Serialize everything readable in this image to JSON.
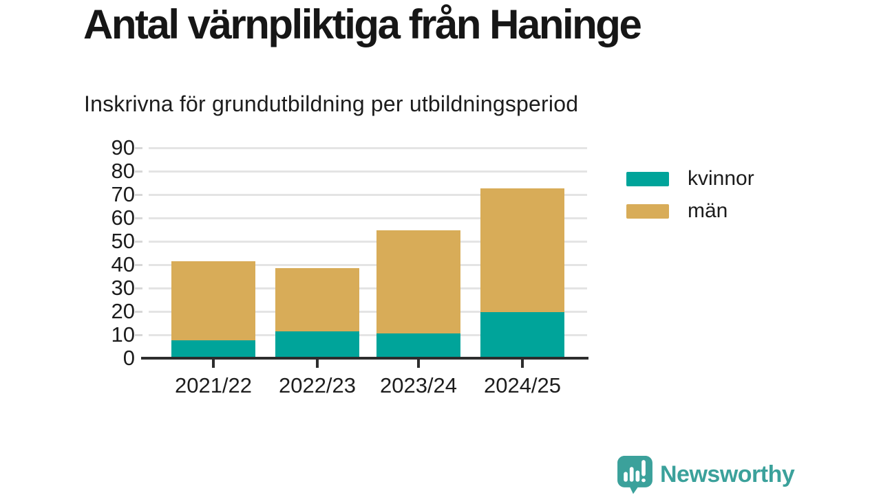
{
  "title": "Antal värnpliktiga från Haninge",
  "subtitle": "Inskrivna för grundutbildning per utbildningsperiod",
  "chart_data": {
    "type": "bar",
    "stacked": true,
    "title": "Antal värnpliktiga från Haninge",
    "subtitle": "Inskrivna för grundutbildning per utbildningsperiod",
    "categories": [
      "2021/22",
      "2022/23",
      "2023/24",
      "2024/25"
    ],
    "series": [
      {
        "name": "kvinnor",
        "color": "#00a49a",
        "values": [
          7,
          11,
          10,
          19
        ]
      },
      {
        "name": "män",
        "color": "#d8ac58",
        "values": [
          34,
          27,
          44,
          53
        ]
      }
    ],
    "stack_totals": [
      41,
      38,
      54,
      72
    ],
    "xlabel": "",
    "ylabel": "",
    "ylim": [
      0,
      90
    ],
    "yticks": [
      0,
      10,
      20,
      30,
      40,
      50,
      60,
      70,
      80,
      90
    ],
    "grid": true,
    "legend_position": "right"
  },
  "branding": {
    "name": "Newsworthy",
    "color": "#3ba19b",
    "icon": "newsworthy-speech-bubble-barchart-icon"
  }
}
